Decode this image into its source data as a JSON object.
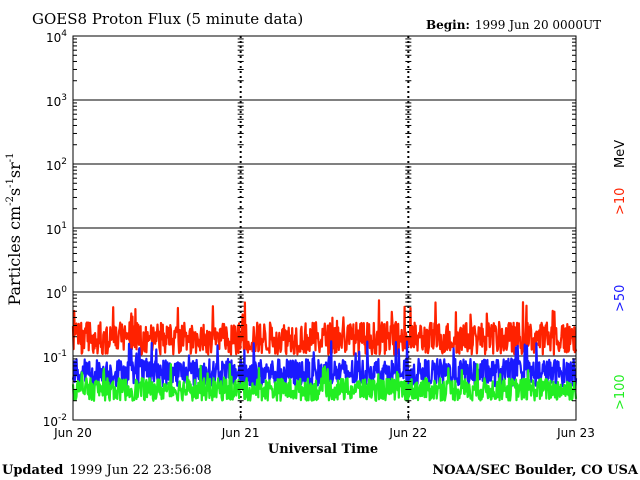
{
  "title": "GOES8 Proton Flux (5 minute data)",
  "begin_label": "Begin:",
  "begin_value": "1999 Jun 20 0000UT",
  "footer_left_label": "Updated",
  "footer_left_value": "1999 Jun 22 23:56:08",
  "footer_right": "NOAA/SEC Boulder, CO USA",
  "colors": {
    "gt10": "#ff2200",
    "gt50": "#1a1aff",
    "gt100": "#22ee22",
    "mev": "#000000",
    "axis": "#000000"
  },
  "chart_data": {
    "type": "line",
    "title": "GOES8 Proton Flux (5 minute data)",
    "xlabel": "Universal Time",
    "ylabel_base": "Particles cm",
    "ylabel_units": [
      "-2",
      "s",
      "-1",
      "sr",
      "-1"
    ],
    "yscale": "log",
    "ylim": [
      0.01,
      10000
    ],
    "y_ticks": [
      {
        "value": 0.01,
        "base": "10",
        "exp": "-2"
      },
      {
        "value": 0.1,
        "base": "10",
        "exp": "-1"
      },
      {
        "value": 1,
        "base": "10",
        "exp": "0"
      },
      {
        "value": 10,
        "base": "10",
        "exp": "1"
      },
      {
        "value": 100,
        "base": "10",
        "exp": "2"
      },
      {
        "value": 1000,
        "base": "10",
        "exp": "3"
      },
      {
        "value": 10000,
        "base": "10",
        "exp": "4"
      }
    ],
    "grid_lines_y": [
      0.1,
      1,
      10,
      100,
      1000
    ],
    "x_ticks": [
      "Jun 20",
      "Jun 21",
      "Jun 22",
      "Jun 23"
    ],
    "x_range_days": [
      0,
      3
    ],
    "side_labels": [
      {
        "text": ">10",
        "series": "gt10"
      },
      {
        "text": "MeV",
        "series": "mev"
      },
      {
        "text": ">50",
        "series": "gt50"
      },
      {
        "text": ">100",
        "series": "gt100"
      }
    ],
    "series": [
      {
        "key": "gt10",
        "name": ">10 MeV",
        "color": "#ff2200",
        "typical": 0.19,
        "min": 0.09,
        "max": 0.75
      },
      {
        "key": "gt50",
        "name": ">50 MeV",
        "color": "#1a1aff",
        "typical": 0.055,
        "min": 0.028,
        "max": 0.17
      },
      {
        "key": "gt100",
        "name": ">100 MeV",
        "color": "#22ee22",
        "typical": 0.03,
        "min": 0.017,
        "max": 0.075
      }
    ]
  }
}
